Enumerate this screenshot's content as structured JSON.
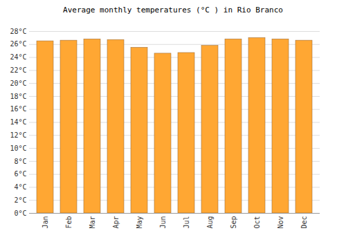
{
  "chart_data": {
    "type": "bar",
    "title": "Average monthly temperatures (°C ) in Rio Branco",
    "categories": [
      "Jan",
      "Feb",
      "Mar",
      "Apr",
      "May",
      "Jun",
      "Jul",
      "Aug",
      "Sep",
      "Oct",
      "Nov",
      "Dec"
    ],
    "values": [
      26.5,
      26.6,
      26.8,
      26.7,
      25.5,
      24.6,
      24.7,
      25.8,
      26.8,
      27.0,
      26.8,
      26.6
    ],
    "color": "#ffa733",
    "ylim": [
      0,
      28
    ],
    "yticks": [
      {
        "value": 0,
        "label": "0°C"
      },
      {
        "value": 2,
        "label": "2°C"
      },
      {
        "value": 4,
        "label": "4°C"
      },
      {
        "value": 6,
        "label": "6°C"
      },
      {
        "value": 8,
        "label": "8°C"
      },
      {
        "value": 10,
        "label": "10°C"
      },
      {
        "value": 12,
        "label": "12°C"
      },
      {
        "value": 14,
        "label": "14°C"
      },
      {
        "value": 16,
        "label": "16°C"
      },
      {
        "value": 18,
        "label": "18°C"
      },
      {
        "value": 20,
        "label": "20°C"
      },
      {
        "value": 22,
        "label": "22°C"
      },
      {
        "value": 24,
        "label": "24°C"
      },
      {
        "value": 26,
        "label": "26°C"
      },
      {
        "value": 28,
        "label": "28°C"
      }
    ],
    "grid": true
  }
}
